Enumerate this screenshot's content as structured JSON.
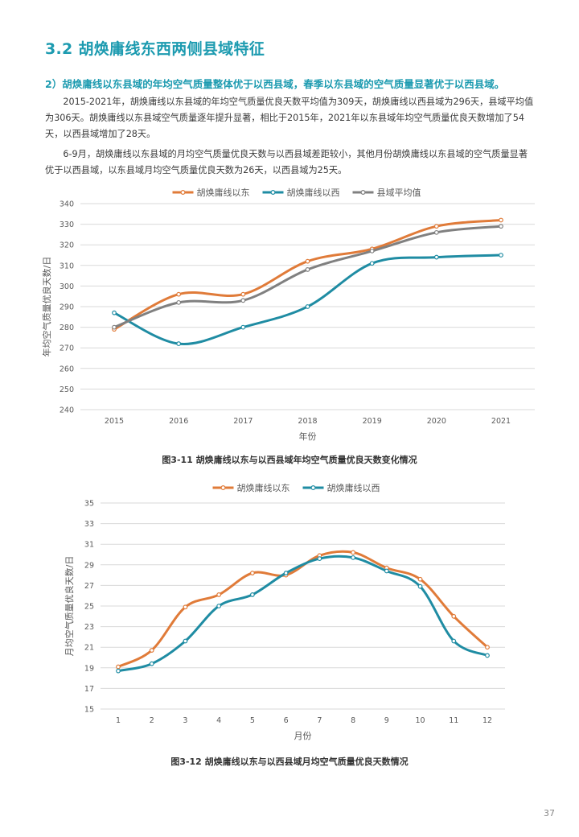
{
  "section": {
    "title": "3.2 胡焕庸线东西两侧县域特征"
  },
  "subsection": {
    "heading": "2）胡焕庸线以东县域的年均空气质量整体优于以西县域，春季以东县域的空气质量显著优于以西县域。"
  },
  "paragraphs": [
    "2015-2021年，胡焕庸线以东县域的年均空气质量优良天数平均值为309天，胡焕庸线以西县域为296天，县域平均值为306天。胡焕庸线以东县域空气质量逐年提升显著，相比于2015年，2021年以东县域年均空气质量优良天数增加了54天，以西县域增加了28天。",
    "6-9月，胡焕庸线以东县域的月均空气质量优良天数与以西县域差距较小，其他月份胡焕庸线以东县域的空气质量显著优于以西县域，以东县域月均空气质量优良天数为26天，以西县域为25天。"
  ],
  "figures": [
    {
      "caption": "图3-11 胡焕庸线以东与以西县域年均空气质量优良天数变化情况"
    },
    {
      "caption": "图3-12 胡焕庸线以东与以西县域月均空气质量优良天数情况"
    }
  ],
  "page_number": "37",
  "chart_data": [
    {
      "type": "line",
      "title": "",
      "xlabel": "年份",
      "ylabel": "年均空气质量优良天数/日",
      "categories": [
        "2015",
        "2016",
        "2017",
        "2018",
        "2019",
        "2020",
        "2021"
      ],
      "ylim": [
        240,
        340
      ],
      "yticks": [
        240,
        250,
        260,
        270,
        280,
        290,
        300,
        310,
        320,
        330,
        340
      ],
      "grid": true,
      "legend": "top-center",
      "series": [
        {
          "name": "胡焕庸线以东",
          "color": "#e07b39",
          "values": [
            279,
            296,
            296,
            312,
            318,
            329,
            332
          ]
        },
        {
          "name": "胡焕庸线以西",
          "color": "#1f8ca3",
          "values": [
            287,
            272,
            280,
            290,
            311,
            314,
            315
          ]
        },
        {
          "name": "县域平均值",
          "color": "#808080",
          "values": [
            280,
            292,
            293,
            308,
            317,
            326,
            329
          ]
        }
      ]
    },
    {
      "type": "line",
      "title": "",
      "xlabel": "月份",
      "ylabel": "月均空气质量优良天数/日",
      "categories": [
        "1",
        "2",
        "3",
        "4",
        "5",
        "6",
        "7",
        "8",
        "9",
        "10",
        "11",
        "12"
      ],
      "ylim": [
        15,
        35
      ],
      "yticks": [
        15,
        17,
        19,
        21,
        23,
        25,
        27,
        29,
        31,
        33,
        35
      ],
      "grid": true,
      "legend": "top-center",
      "series": [
        {
          "name": "胡焕庸线以东",
          "color": "#e07b39",
          "values": [
            19.1,
            20.7,
            24.9,
            26.1,
            28.2,
            28.0,
            29.9,
            30.2,
            28.7,
            27.6,
            24.0,
            21.0
          ]
        },
        {
          "name": "胡焕庸线以西",
          "color": "#1f8ca3",
          "values": [
            18.7,
            19.4,
            21.6,
            25.0,
            26.1,
            28.2,
            29.6,
            29.7,
            28.4,
            26.9,
            21.6,
            20.2
          ]
        }
      ]
    }
  ]
}
